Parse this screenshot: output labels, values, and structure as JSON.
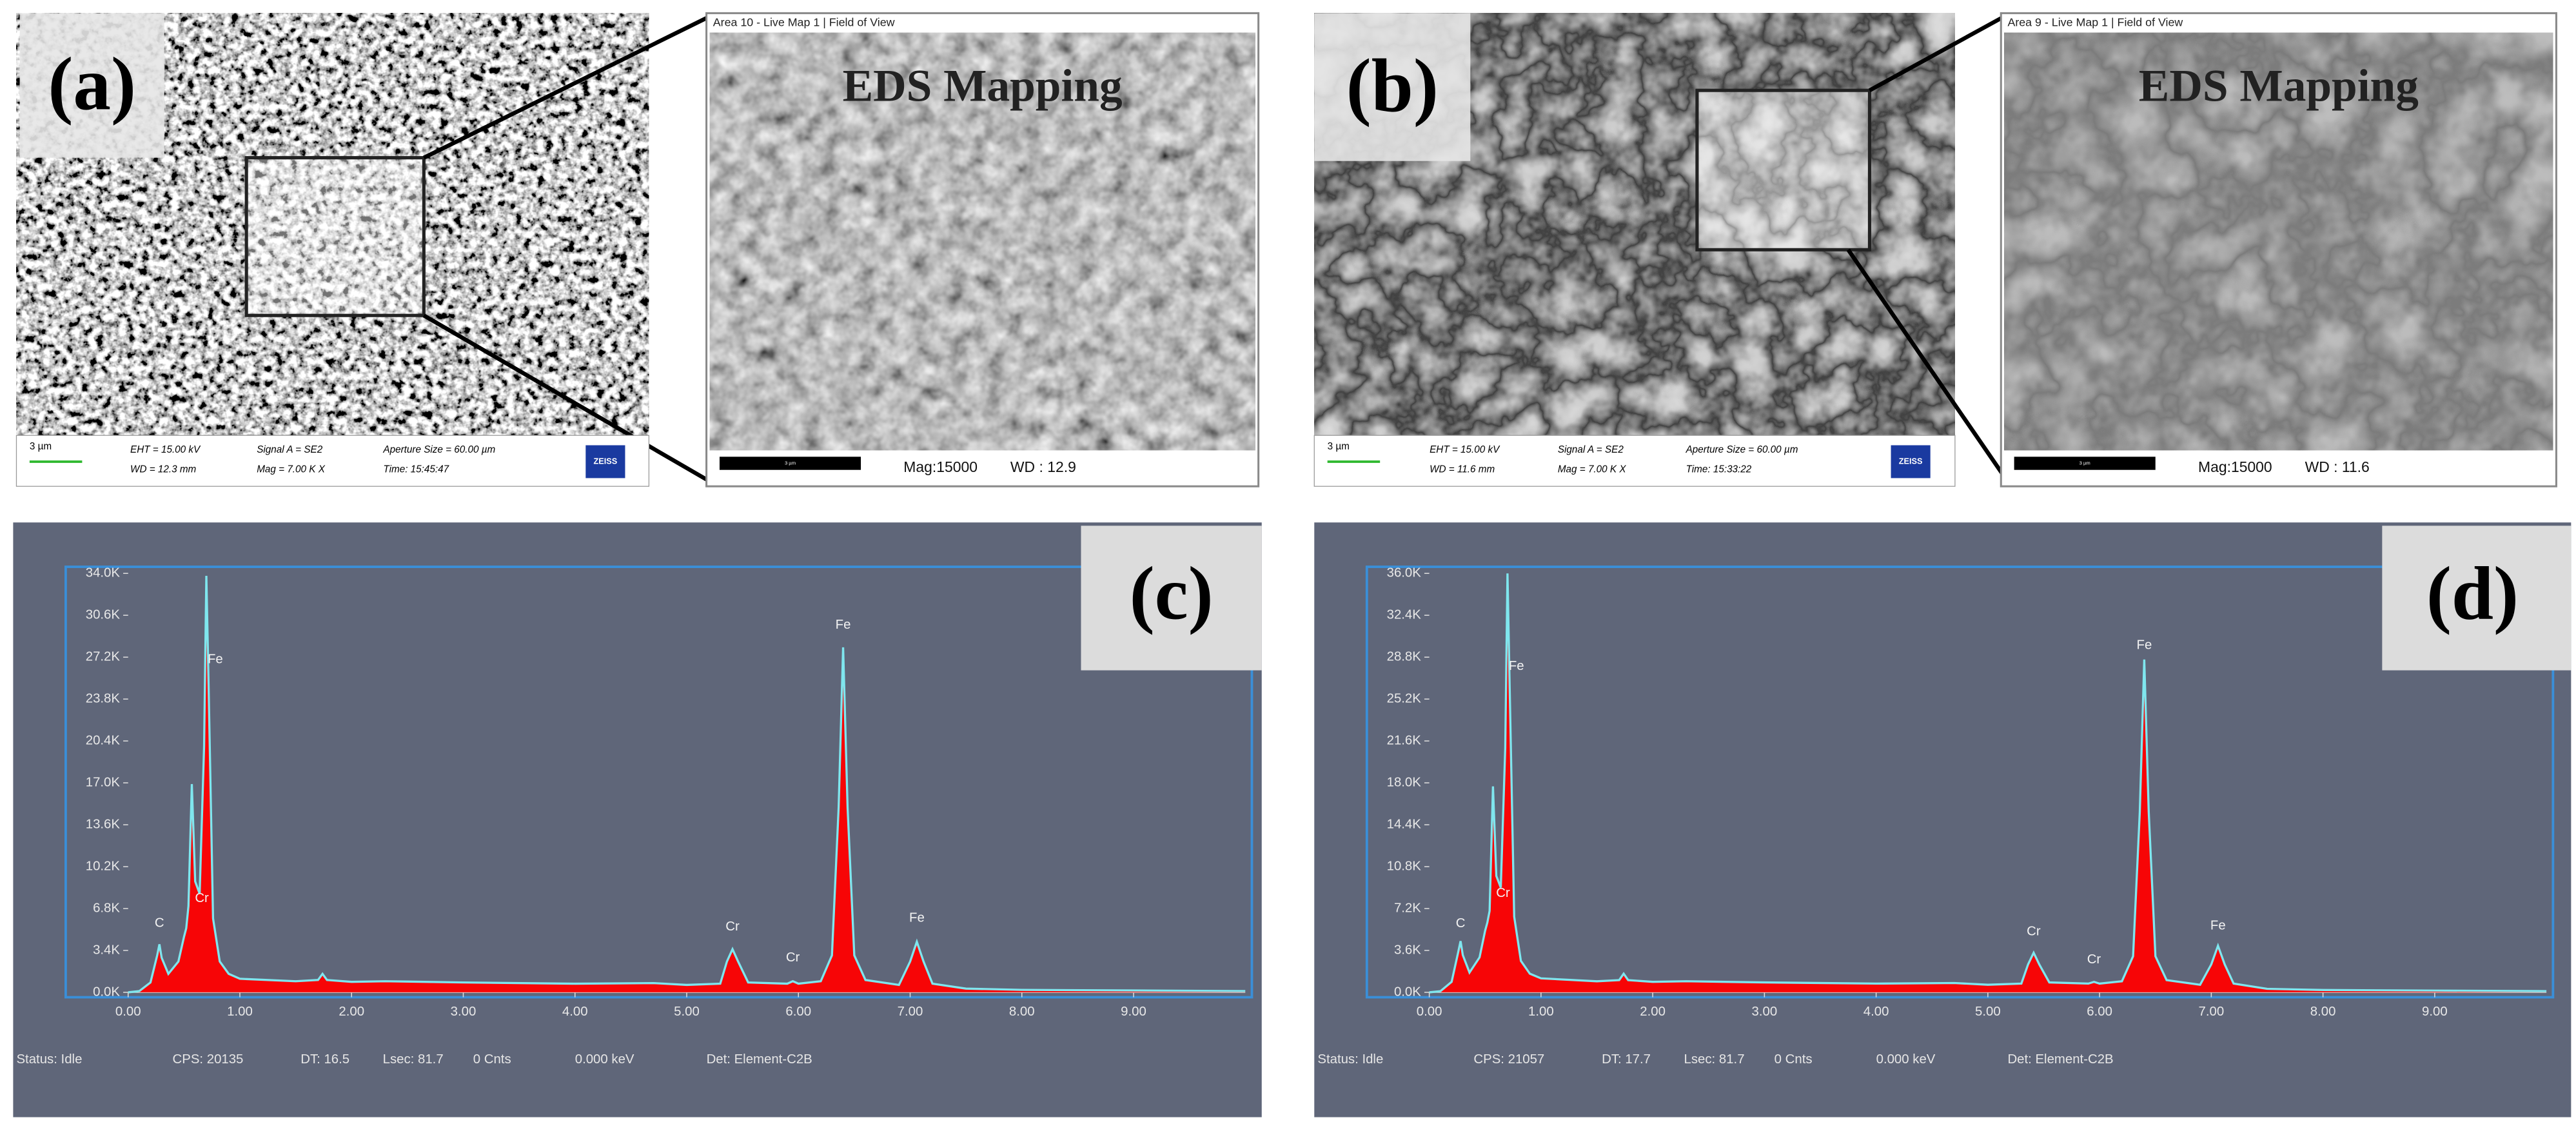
{
  "panels": [
    {
      "label": "(a)",
      "sem": {
        "scale": "3 µm",
        "info": [
          "EHT = 15.00 kV",
          "WD = 12.3 mm",
          "Signal A = SE2",
          "Mag = 7.00 K X",
          "Aperture Size = 60.00 µm",
          "Time: 15:45:47"
        ],
        "logo": "ZEISS"
      },
      "eds": {
        "window_title": "Area 10 - Live Map 1 | Field of View",
        "heading": "EDS Mapping",
        "scale": "3 µm",
        "mag": "Mag:15000",
        "wd": "WD : 12.9"
      }
    },
    {
      "label": "(b)",
      "sem": {
        "scale": "3 µm",
        "info": [
          "EHT = 15.00 kV",
          "WD = 11.6 mm",
          "Signal A = SE2",
          "Mag = 7.00 K X",
          "Aperture Size = 60.00 µm",
          "Time: 15:33:22"
        ],
        "logo": "ZEISS"
      },
      "eds": {
        "window_title": "Area 9 - Live Map 1 | Field of View",
        "heading": "EDS Mapping",
        "scale": "3 µm",
        "mag": "Mag:15000",
        "wd": "WD : 11.6"
      }
    }
  ],
  "chart_data": [
    {
      "type": "line",
      "label": "(c)",
      "xlim": [
        0,
        10
      ],
      "ylim": [
        0,
        34000
      ],
      "xticks": [
        {
          "value": 0,
          "label": "0.00"
        },
        {
          "value": 1,
          "label": "1.00"
        },
        {
          "value": 2,
          "label": "2.00"
        },
        {
          "value": 3,
          "label": "3.00"
        },
        {
          "value": 4,
          "label": "4.00"
        },
        {
          "value": 5,
          "label": "5.00"
        },
        {
          "value": 6,
          "label": "6.00"
        },
        {
          "value": 7,
          "label": "7.00"
        },
        {
          "value": 8,
          "label": "8.00"
        },
        {
          "value": 9,
          "label": "9.00"
        }
      ],
      "yticks": [
        {
          "value": 0,
          "label": "0.0K"
        },
        {
          "value": 3400,
          "label": "3.4K"
        },
        {
          "value": 6800,
          "label": "6.8K"
        },
        {
          "value": 10200,
          "label": "10.2K"
        },
        {
          "value": 13600,
          "label": "13.6K"
        },
        {
          "value": 17000,
          "label": "17.0K"
        },
        {
          "value": 20400,
          "label": "20.4K"
        },
        {
          "value": 23800,
          "label": "23.8K"
        },
        {
          "value": 27200,
          "label": "27.2K"
        },
        {
          "value": 30600,
          "label": "30.6K"
        },
        {
          "value": 34000,
          "label": "34.0K"
        }
      ],
      "series": [
        {
          "color": "#7fe6ee",
          "fill": "#ff0000",
          "x": [
            0,
            0.1,
            0.2,
            0.26,
            0.28,
            0.3,
            0.36,
            0.45,
            0.5,
            0.52,
            0.54,
            0.57,
            0.6,
            0.64,
            0.68,
            0.7,
            0.72,
            0.76,
            0.82,
            0.9,
            1.0,
            1.5,
            1.7,
            1.74,
            1.78,
            2.0,
            2.3,
            3.0,
            4.0,
            4.7,
            5.0,
            5.3,
            5.36,
            5.41,
            5.46,
            5.55,
            5.9,
            5.95,
            6.0,
            6.2,
            6.3,
            6.36,
            6.4,
            6.44,
            6.5,
            6.6,
            6.9,
            7.0,
            7.06,
            7.12,
            7.2,
            7.5,
            8.0,
            9.0,
            10.0
          ],
          "values": [
            0,
            100,
            800,
            3000,
            3900,
            2800,
            1500,
            2500,
            4500,
            5200,
            7000,
            16900,
            9000,
            8000,
            20000,
            33800,
            25000,
            6000,
            2500,
            1500,
            1100,
            900,
            1000,
            1500,
            1000,
            850,
            900,
            800,
            700,
            750,
            600,
            700,
            2500,
            3500,
            2500,
            800,
            700,
            900,
            700,
            900,
            3000,
            15000,
            28000,
            15000,
            3000,
            1000,
            600,
            2500,
            4100,
            2500,
            700,
            300,
            200,
            150,
            100
          ]
        }
      ],
      "peak_labels": [
        {
          "label": "C",
          "x": 0.28,
          "y": 5600
        },
        {
          "label": "Cr",
          "x": 0.66,
          "y": 7600
        },
        {
          "label": "Fe",
          "x": 0.78,
          "y": 27000
        },
        {
          "label": "Cr",
          "x": 5.41,
          "y": 5300
        },
        {
          "label": "Cr",
          "x": 5.95,
          "y": 2800
        },
        {
          "label": "Fe",
          "x": 6.4,
          "y": 29800
        },
        {
          "label": "Fe",
          "x": 7.06,
          "y": 6000
        }
      ],
      "status": [
        "Status: Idle",
        "CPS: 20135",
        "DT: 16.5",
        "Lsec: 81.7",
        "0 Cnts",
        "0.000 keV",
        "Det: Element-C2B"
      ]
    },
    {
      "type": "line",
      "label": "(d)",
      "xlim": [
        0,
        10
      ],
      "ylim": [
        0,
        36000
      ],
      "xticks": [
        {
          "value": 0,
          "label": "0.00"
        },
        {
          "value": 1,
          "label": "1.00"
        },
        {
          "value": 2,
          "label": "2.00"
        },
        {
          "value": 3,
          "label": "3.00"
        },
        {
          "value": 4,
          "label": "4.00"
        },
        {
          "value": 5,
          "label": "5.00"
        },
        {
          "value": 6,
          "label": "6.00"
        },
        {
          "value": 7,
          "label": "7.00"
        },
        {
          "value": 8,
          "label": "8.00"
        },
        {
          "value": 9,
          "label": "9.00"
        }
      ],
      "yticks": [
        {
          "value": 0,
          "label": "0.0K"
        },
        {
          "value": 3600,
          "label": "3.6K"
        },
        {
          "value": 7200,
          "label": "7.2K"
        },
        {
          "value": 10800,
          "label": "10.8K"
        },
        {
          "value": 14400,
          "label": "14.4K"
        },
        {
          "value": 18000,
          "label": "18.0K"
        },
        {
          "value": 21600,
          "label": "21.6K"
        },
        {
          "value": 25200,
          "label": "25.2K"
        },
        {
          "value": 28800,
          "label": "28.8K"
        },
        {
          "value": 32400,
          "label": "32.4K"
        },
        {
          "value": 36000,
          "label": "36.0K"
        }
      ],
      "series": [
        {
          "color": "#7fe6ee",
          "fill": "#ff0000",
          "x": [
            0,
            0.1,
            0.2,
            0.26,
            0.28,
            0.3,
            0.36,
            0.45,
            0.5,
            0.52,
            0.54,
            0.57,
            0.6,
            0.64,
            0.68,
            0.7,
            0.72,
            0.76,
            0.82,
            0.9,
            1.0,
            1.5,
            1.7,
            1.74,
            1.78,
            2.0,
            2.3,
            3.0,
            4.0,
            4.7,
            5.0,
            5.3,
            5.36,
            5.41,
            5.46,
            5.55,
            5.9,
            5.95,
            6.0,
            6.2,
            6.3,
            6.36,
            6.4,
            6.44,
            6.5,
            6.6,
            6.9,
            7.0,
            7.06,
            7.12,
            7.2,
            7.5,
            8.0,
            9.0,
            10.0
          ],
          "values": [
            0,
            100,
            900,
            3500,
            4400,
            3200,
            1700,
            3000,
            5300,
            6000,
            7000,
            17700,
            10000,
            9000,
            21000,
            36000,
            26000,
            6500,
            2700,
            1600,
            1200,
            950,
            1050,
            1600,
            1050,
            900,
            950,
            850,
            750,
            800,
            650,
            750,
            2400,
            3400,
            2400,
            850,
            750,
            900,
            750,
            950,
            3100,
            15500,
            28600,
            15500,
            3100,
            1050,
            650,
            2400,
            4000,
            2400,
            750,
            300,
            200,
            150,
            100
          ]
        }
      ],
      "peak_labels": [
        {
          "label": "C",
          "x": 0.28,
          "y": 5900
        },
        {
          "label": "Cr",
          "x": 0.66,
          "y": 8500
        },
        {
          "label": "Fe",
          "x": 0.78,
          "y": 28000
        },
        {
          "label": "Cr",
          "x": 5.41,
          "y": 5200
        },
        {
          "label": "Cr",
          "x": 5.95,
          "y": 2800
        },
        {
          "label": "Fe",
          "x": 6.4,
          "y": 29800
        },
        {
          "label": "Fe",
          "x": 7.06,
          "y": 5700
        }
      ],
      "status": [
        "Status: Idle",
        "CPS: 21057",
        "DT: 17.7",
        "Lsec: 81.7",
        "0 Cnts",
        "0.000 keV",
        "Det: Element-C2B"
      ]
    }
  ]
}
